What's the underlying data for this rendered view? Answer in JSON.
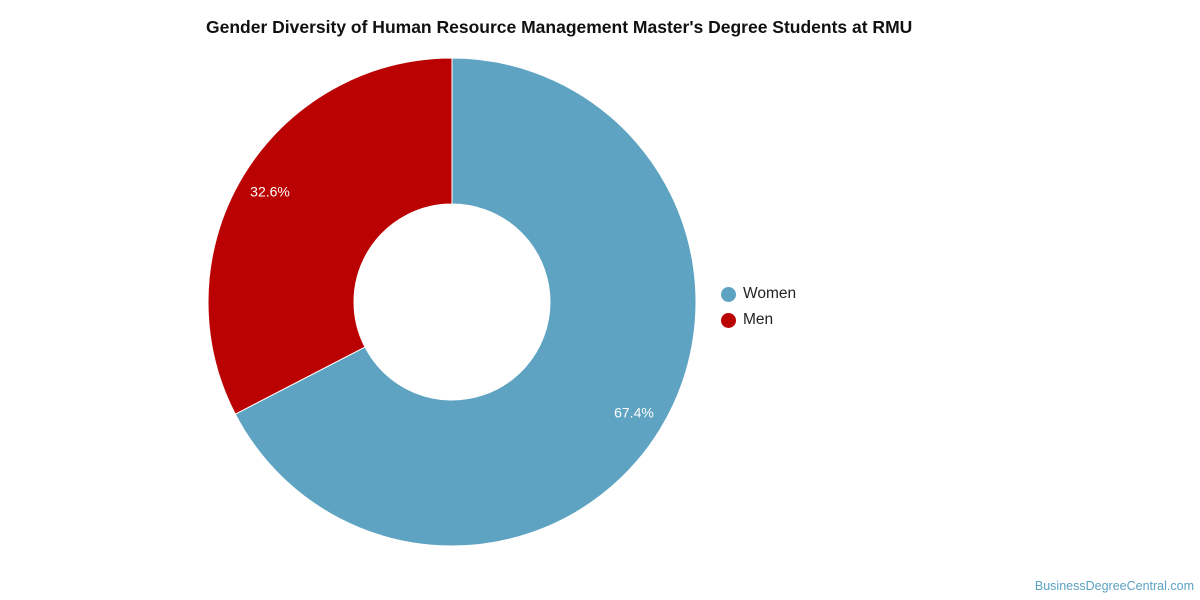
{
  "chart_data": {
    "type": "pie",
    "variant": "donut",
    "title": "Gender Diversity of Human Resource Management Master's Degree Students at RMU",
    "categories": [
      "Women",
      "Men"
    ],
    "values": [
      67.4,
      32.6
    ],
    "value_labels": [
      "67.4%",
      "32.6%"
    ],
    "colors": [
      "#5ea3c1",
      "#bb0202"
    ],
    "legend": {
      "position": "right",
      "entries": [
        "Women",
        "Men"
      ]
    }
  },
  "footer": {
    "watermark": "BusinessDegreeCentral.com"
  }
}
